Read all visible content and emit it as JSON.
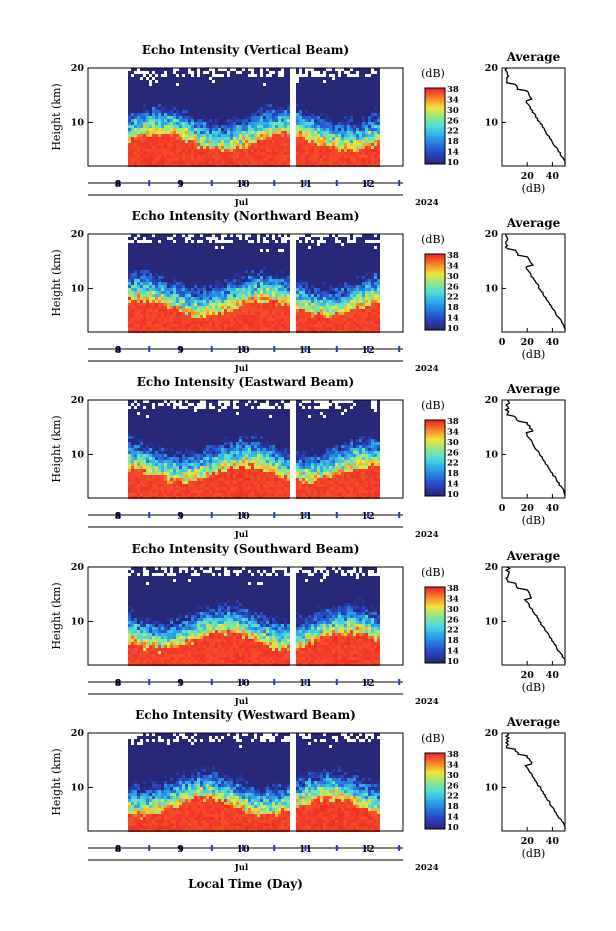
{
  "chart_data": [
    {
      "type": "heatmap",
      "title": "Echo Intensity (Vertical Beam)",
      "ylabel": "Height (km)",
      "ylim": [
        2,
        20
      ],
      "yticks": [
        "10",
        "20"
      ],
      "xticks": [
        "8",
        "9",
        "10",
        "11",
        "12"
      ],
      "month": "Jul",
      "year": "2024",
      "colorbar": {
        "unit": "(dB)",
        "ticks": [
          "10",
          "14",
          "18",
          "22",
          "26",
          "30",
          "34",
          "38"
        ],
        "range": [
          10,
          38
        ]
      },
      "profile": {
        "title": "Average",
        "xlabel": "(dB)",
        "xticks": [
          "20",
          "40"
        ],
        "xlim": [
          0,
          50
        ],
        "ylim": [
          2,
          20
        ],
        "yticks": [
          "10",
          "20"
        ]
      }
    },
    {
      "type": "heatmap",
      "title": "Echo Intensity (Northward Beam)",
      "ylabel": "Height (km)",
      "ylim": [
        2,
        20
      ],
      "yticks": [
        "10",
        "20"
      ],
      "xticks": [
        "8",
        "9",
        "10",
        "11",
        "12"
      ],
      "month": "Jul",
      "year": "2024",
      "colorbar": {
        "unit": "(dB)",
        "ticks": [
          "10",
          "14",
          "18",
          "22",
          "26",
          "30",
          "34",
          "38"
        ],
        "range": [
          10,
          38
        ]
      },
      "profile": {
        "title": "Average",
        "xlabel": "(dB)",
        "xticks": [
          "0",
          "20",
          "40"
        ],
        "xlim": [
          0,
          50
        ],
        "ylim": [
          2,
          20
        ],
        "yticks": [
          "10",
          "20"
        ]
      }
    },
    {
      "type": "heatmap",
      "title": "Echo Intensity (Eastward Beam)",
      "ylabel": "Height (km)",
      "ylim": [
        2,
        20
      ],
      "yticks": [
        "10",
        "20"
      ],
      "xticks": [
        "8",
        "9",
        "10",
        "11",
        "12"
      ],
      "month": "Jul",
      "year": "2024",
      "colorbar": {
        "unit": "(dB)",
        "ticks": [
          "10",
          "14",
          "18",
          "22",
          "26",
          "30",
          "34",
          "38"
        ],
        "range": [
          10,
          38
        ]
      },
      "profile": {
        "title": "Average",
        "xlabel": "(dB)",
        "xticks": [
          "0",
          "20",
          "40"
        ],
        "xlim": [
          0,
          50
        ],
        "ylim": [
          2,
          20
        ],
        "yticks": [
          "10",
          "20"
        ]
      }
    },
    {
      "type": "heatmap",
      "title": "Echo Intensity (Southward Beam)",
      "ylabel": "Height (km)",
      "ylim": [
        2,
        20
      ],
      "yticks": [
        "10",
        "20"
      ],
      "xticks": [
        "8",
        "9",
        "10",
        "11",
        "12"
      ],
      "month": "Jul",
      "year": "2024",
      "colorbar": {
        "unit": "(dB)",
        "ticks": [
          "10",
          "14",
          "18",
          "22",
          "26",
          "30",
          "34",
          "38"
        ],
        "range": [
          10,
          38
        ]
      },
      "profile": {
        "title": "Average",
        "xlabel": "(dB)",
        "xticks": [
          "20",
          "40"
        ],
        "xlim": [
          0,
          50
        ],
        "ylim": [
          2,
          20
        ],
        "yticks": [
          "10",
          "20"
        ]
      }
    },
    {
      "type": "heatmap",
      "title": "Echo Intensity (Westward Beam)",
      "ylabel": "Height (km)",
      "ylim": [
        2,
        20
      ],
      "yticks": [
        "10",
        "20"
      ],
      "xticks": [
        "8",
        "9",
        "10",
        "11",
        "12"
      ],
      "month": "Jul",
      "year": "2024",
      "xlabel": "Local Time (Day)",
      "colorbar": {
        "unit": "(dB)",
        "ticks": [
          "10",
          "14",
          "18",
          "22",
          "26",
          "30",
          "34",
          "38"
        ],
        "range": [
          10,
          38
        ]
      },
      "profile": {
        "title": "Average",
        "xlabel": "(dB)",
        "xticks": [
          "20",
          "40"
        ],
        "xlim": [
          0,
          50
        ],
        "ylim": [
          2,
          20
        ],
        "yticks": [
          "10",
          "20"
        ]
      }
    }
  ],
  "colors": {
    "low": "#2a3a8e",
    "mid": "#40c8d8",
    "high": "#f03028",
    "axis_marker": "#1d3fbf"
  }
}
